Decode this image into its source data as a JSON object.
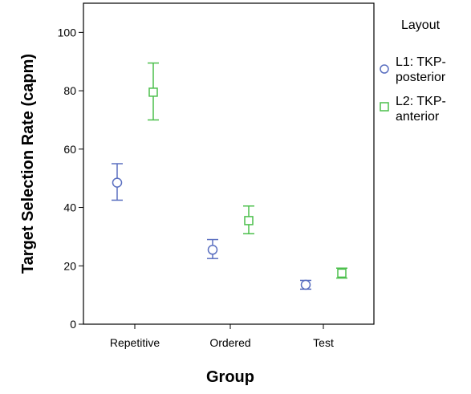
{
  "chart_data": {
    "type": "scatter",
    "subtype": "means-with-error-bars",
    "title": "",
    "xlabel": "Group",
    "ylabel": "Target Selection Rate (capm)",
    "categories": [
      "Repetitive",
      "Ordered",
      "Test"
    ],
    "ylim": [
      0,
      110
    ],
    "yticks": [
      0,
      20,
      40,
      60,
      80,
      100
    ],
    "grid": false,
    "legend": {
      "title": "Layout",
      "placement": "right",
      "entries": [
        {
          "line1": "L1: TKP-",
          "line2": "posterior"
        },
        {
          "line1": "L2: TKP-",
          "line2": "anterior"
        }
      ]
    },
    "series": [
      {
        "name": "L1: TKP-posterior",
        "marker": "circle",
        "color": "#5a6fc0",
        "values": [
          48.5,
          25.5,
          13.5
        ],
        "err_low": [
          42.5,
          22.5,
          12.0
        ],
        "err_high": [
          55.0,
          29.0,
          15.0
        ]
      },
      {
        "name": "L2: TKP-anterior",
        "marker": "square",
        "color": "#4bbf4b",
        "values": [
          79.5,
          35.5,
          17.5
        ],
        "err_low": [
          70.0,
          31.0,
          15.8
        ],
        "err_high": [
          89.5,
          40.5,
          19.2
        ]
      }
    ]
  }
}
